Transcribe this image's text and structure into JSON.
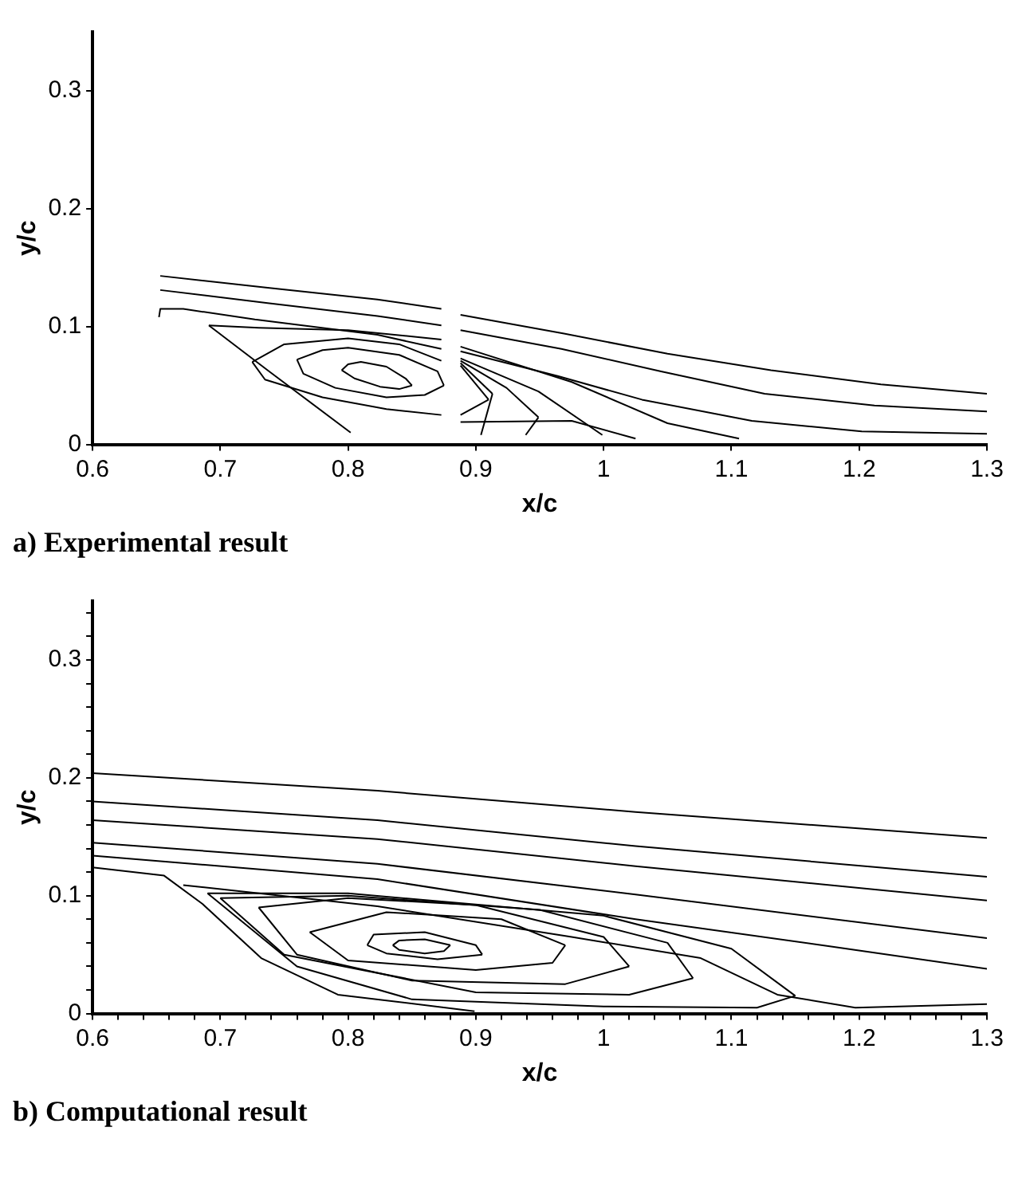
{
  "chart_data": [
    {
      "type": "line",
      "title": "a) Experimental result",
      "xlabel": "x/c",
      "ylabel": "y/c",
      "xlim": [
        0.6,
        1.3
      ],
      "ylim": [
        0,
        0.35
      ],
      "xticks": [
        0.6,
        0.7,
        0.8,
        0.9,
        1,
        1.1,
        1.2,
        1.3
      ],
      "yticks": [
        0,
        0.1,
        0.2,
        0.3
      ],
      "grid": false,
      "marker": "none",
      "line_style": "solid",
      "series": [
        {
          "color": "#000000",
          "x": [
            0.653,
            0.737,
            0.823,
            0.873
          ],
          "values": [
            0.143,
            0.133,
            0.123,
            0.115
          ]
        },
        {
          "color": "#000000",
          "x": [
            0.888,
            0.969,
            1.05,
            1.131,
            1.217,
            1.3
          ],
          "values": [
            0.11,
            0.094,
            0.077,
            0.063,
            0.051,
            0.043
          ]
        },
        {
          "color": "#000000",
          "x": [
            0.653,
            0.737,
            0.823,
            0.873
          ],
          "values": [
            0.131,
            0.12,
            0.109,
            0.101
          ]
        },
        {
          "color": "#000000",
          "x": [
            0.888,
            0.967,
            1.045,
            1.126,
            1.212,
            1.3
          ],
          "values": [
            0.097,
            0.081,
            0.062,
            0.043,
            0.033,
            0.028
          ]
        },
        {
          "color": "#000000",
          "x": [
            0.652,
            0.653,
            0.671,
            0.727,
            0.823,
            0.873
          ],
          "values": [
            0.108,
            0.115,
            0.115,
            0.106,
            0.093,
            0.081
          ]
        },
        {
          "color": "#000000",
          "x": [
            0.888,
            0.964,
            1.03,
            1.116,
            1.202,
            1.3
          ],
          "values": [
            0.079,
            0.058,
            0.038,
            0.02,
            0.011,
            0.009
          ]
        },
        {
          "color": "#000000",
          "x": [
            0.795,
            0.8,
            0.81,
            0.83,
            0.845,
            0.85
          ],
          "values": [
            0.063,
            0.068,
            0.07,
            0.066,
            0.056,
            0.05
          ]
        },
        {
          "color": "#000000",
          "x": [
            0.795,
            0.805,
            0.825,
            0.84,
            0.85
          ],
          "values": [
            0.063,
            0.056,
            0.049,
            0.047,
            0.05
          ]
        },
        {
          "color": "#000000",
          "x": [
            0.76,
            0.78,
            0.8,
            0.84,
            0.87,
            0.875
          ],
          "values": [
            0.072,
            0.08,
            0.082,
            0.076,
            0.062,
            0.05
          ]
        },
        {
          "color": "#000000",
          "x": [
            0.76,
            0.765,
            0.79,
            0.83,
            0.86,
            0.875
          ],
          "values": [
            0.072,
            0.06,
            0.048,
            0.04,
            0.042,
            0.05
          ]
        },
        {
          "color": "#000000",
          "x": [
            0.725,
            0.75,
            0.8,
            0.84,
            0.873
          ],
          "values": [
            0.07,
            0.085,
            0.09,
            0.085,
            0.071
          ]
        },
        {
          "color": "#000000",
          "x": [
            0.725,
            0.735,
            0.78,
            0.83,
            0.873
          ],
          "values": [
            0.07,
            0.055,
            0.04,
            0.03,
            0.025
          ]
        },
        {
          "color": "#000000",
          "x": [
            0.691,
            0.73,
            0.8,
            0.873
          ],
          "values": [
            0.101,
            0.099,
            0.097,
            0.089
          ]
        },
        {
          "color": "#000000",
          "x": [
            0.691,
            0.737,
            0.802
          ],
          "values": [
            0.101,
            0.063,
            0.01
          ]
        },
        {
          "color": "#000000",
          "x": [
            0.888,
            0.949,
            0.999
          ],
          "values": [
            0.073,
            0.045,
            0.008
          ]
        },
        {
          "color": "#000000",
          "x": [
            0.888,
            0.924,
            0.949
          ],
          "values": [
            0.071,
            0.048,
            0.023
          ]
        },
        {
          "color": "#000000",
          "x": [
            0.939,
            0.949
          ],
          "values": [
            0.008,
            0.023
          ]
        },
        {
          "color": "#000000",
          "x": [
            0.888,
            0.913
          ],
          "values": [
            0.069,
            0.043
          ]
        },
        {
          "color": "#000000",
          "x": [
            0.904,
            0.913
          ],
          "values": [
            0.008,
            0.043
          ]
        },
        {
          "color": "#000000",
          "x": [
            0.888,
            0.91
          ],
          "values": [
            0.067,
            0.038
          ]
        },
        {
          "color": "#000000",
          "x": [
            0.888,
            0.91
          ],
          "values": [
            0.025,
            0.038
          ]
        },
        {
          "color": "#000000",
          "x": [
            0.888,
            0.975,
            1.025
          ],
          "values": [
            0.019,
            0.02,
            0.005
          ]
        },
        {
          "color": "#000000",
          "x": [
            0.888,
            0.975,
            1.05,
            1.106
          ],
          "values": [
            0.083,
            0.053,
            0.018,
            0.005
          ]
        }
      ]
    },
    {
      "type": "line",
      "title": "b) Computational result",
      "xlabel": "x/c",
      "ylabel": "y/c",
      "xlim": [
        0.6,
        1.3
      ],
      "ylim": [
        0,
        0.35
      ],
      "xticks": [
        0.6,
        {
          "value": 0.62,
          "label": null
        },
        {
          "value": 0.64,
          "label": null
        },
        {
          "value": 0.66,
          "label": null
        },
        {
          "value": 0.68,
          "label": null
        },
        0.7,
        {
          "value": 0.72,
          "label": null
        },
        {
          "value": 0.74,
          "label": null
        },
        {
          "value": 0.76,
          "label": null
        },
        {
          "value": 0.78,
          "label": null
        },
        0.8,
        {
          "value": 0.82,
          "label": null
        },
        {
          "value": 0.84,
          "label": null
        },
        {
          "value": 0.86,
          "label": null
        },
        {
          "value": 0.88,
          "label": null
        },
        0.9,
        {
          "value": 0.92,
          "label": null
        },
        {
          "value": 0.94,
          "label": null
        },
        {
          "value": 0.96,
          "label": null
        },
        {
          "value": 0.98,
          "label": null
        },
        1,
        {
          "value": 1.02,
          "label": null
        },
        {
          "value": 1.04,
          "label": null
        },
        {
          "value": 1.06,
          "label": null
        },
        {
          "value": 1.08,
          "label": null
        },
        1.1,
        {
          "value": 1.12,
          "label": null
        },
        {
          "value": 1.14,
          "label": null
        },
        {
          "value": 1.16,
          "label": null
        },
        {
          "value": 1.18,
          "label": null
        },
        1.2,
        {
          "value": 1.22,
          "label": null
        },
        {
          "value": 1.24,
          "label": null
        },
        {
          "value": 1.26,
          "label": null
        },
        {
          "value": 1.28,
          "label": null
        },
        1.3
      ],
      "yticks": [
        0,
        {
          "value": 0.02,
          "label": null
        },
        {
          "value": 0.04,
          "label": null
        },
        {
          "value": 0.06,
          "label": null
        },
        {
          "value": 0.08,
          "label": null
        },
        0.1,
        {
          "value": 0.12,
          "label": null
        },
        {
          "value": 0.14,
          "label": null
        },
        {
          "value": 0.16,
          "label": null
        },
        {
          "value": 0.18,
          "label": null
        },
        0.2,
        {
          "value": 0.22,
          "label": null
        },
        {
          "value": 0.24,
          "label": null
        },
        {
          "value": 0.26,
          "label": null
        },
        {
          "value": 0.28,
          "label": null
        },
        0.3,
        {
          "value": 0.32,
          "label": null
        },
        {
          "value": 0.34,
          "label": null
        }
      ],
      "grid": false,
      "marker": "none",
      "line_style": "solid",
      "series": [
        {
          "color": "#000000",
          "x": [
            0.6,
            0.823,
            1.025,
            1.3
          ],
          "values": [
            0.204,
            0.189,
            0.171,
            0.149
          ]
        },
        {
          "color": "#000000",
          "x": [
            0.6,
            0.823,
            1.025,
            1.3
          ],
          "values": [
            0.18,
            0.164,
            0.142,
            0.116
          ]
        },
        {
          "color": "#000000",
          "x": [
            0.6,
            0.823,
            1.025,
            1.3
          ],
          "values": [
            0.164,
            0.148,
            0.125,
            0.096
          ]
        },
        {
          "color": "#000000",
          "x": [
            0.6,
            0.823,
            1.025,
            1.3
          ],
          "values": [
            0.145,
            0.127,
            0.101,
            0.064
          ]
        },
        {
          "color": "#000000",
          "x": [
            0.6,
            0.823,
            1.025,
            1.177,
            1.3
          ],
          "values": [
            0.134,
            0.114,
            0.08,
            0.057,
            0.038
          ]
        },
        {
          "color": "#000000",
          "x": [
            0.6,
            0.656,
            0.686,
            0.732,
            0.792,
            0.899
          ],
          "values": [
            0.124,
            0.117,
            0.093,
            0.047,
            0.016,
            0.002
          ]
        },
        {
          "color": "#000000",
          "x": [
            0.671,
            0.823,
            0.975,
            1.076,
            1.136,
            1.197,
            1.3
          ],
          "values": [
            0.109,
            0.091,
            0.065,
            0.047,
            0.016,
            0.005,
            0.008
          ]
        },
        {
          "color": "#000000",
          "x": [
            0.835,
            0.84,
            0.86,
            0.88
          ],
          "values": [
            0.058,
            0.062,
            0.063,
            0.058
          ]
        },
        {
          "color": "#000000",
          "x": [
            0.835,
            0.84,
            0.86,
            0.875,
            0.88
          ],
          "values": [
            0.058,
            0.054,
            0.051,
            0.053,
            0.058
          ]
        },
        {
          "color": "#000000",
          "x": [
            0.815,
            0.82,
            0.86,
            0.9,
            0.905
          ],
          "values": [
            0.058,
            0.067,
            0.069,
            0.058,
            0.05
          ]
        },
        {
          "color": "#000000",
          "x": [
            0.815,
            0.83,
            0.87,
            0.905
          ],
          "values": [
            0.058,
            0.051,
            0.046,
            0.05
          ]
        },
        {
          "color": "#000000",
          "x": [
            0.77,
            0.83,
            0.92,
            0.97
          ],
          "values": [
            0.069,
            0.086,
            0.08,
            0.058
          ]
        },
        {
          "color": "#000000",
          "x": [
            0.77,
            0.8,
            0.9,
            0.96,
            0.97
          ],
          "values": [
            0.069,
            0.045,
            0.037,
            0.043,
            0.058
          ]
        },
        {
          "color": "#000000",
          "x": [
            0.73,
            0.8,
            0.9,
            1,
            1.02
          ],
          "values": [
            0.09,
            0.098,
            0.092,
            0.065,
            0.04
          ]
        },
        {
          "color": "#000000",
          "x": [
            0.73,
            0.76,
            0.85,
            0.97,
            1.02
          ],
          "values": [
            0.09,
            0.05,
            0.028,
            0.025,
            0.04
          ]
        },
        {
          "color": "#000000",
          "x": [
            0.7,
            0.8,
            0.95,
            1.05,
            1.07
          ],
          "values": [
            0.098,
            0.1,
            0.088,
            0.06,
            0.03
          ]
        },
        {
          "color": "#000000",
          "x": [
            0.7,
            0.75,
            0.9,
            1.02,
            1.07
          ],
          "values": [
            0.098,
            0.05,
            0.018,
            0.016,
            0.03
          ]
        },
        {
          "color": "#000000",
          "x": [
            0.69,
            0.8,
            1,
            1.1,
            1.15
          ],
          "values": [
            0.102,
            0.102,
            0.083,
            0.055,
            0.015
          ]
        },
        {
          "color": "#000000",
          "x": [
            0.69,
            0.76,
            0.85,
            1,
            1.12,
            1.15
          ],
          "values": [
            0.102,
            0.04,
            0.012,
            0.006,
            0.005,
            0.015
          ]
        }
      ]
    }
  ]
}
